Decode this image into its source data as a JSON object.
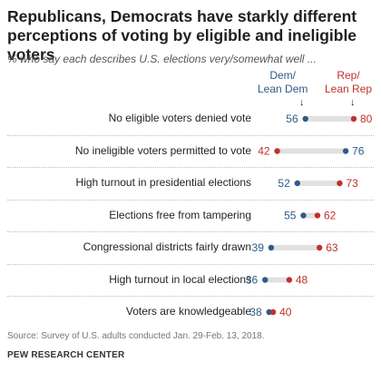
{
  "title": "Republicans, Democrats have starkly different perceptions of voting by eligible and ineligible voters",
  "subtitle": "% who say each describes U.S. elections very/somewhat well ...",
  "source": "Source: Survey of U.S. adults conducted Jan. 29-Feb. 13, 2018.",
  "org": "PEW RESEARCH CENTER",
  "colors": {
    "dem": "#2d5b88",
    "rep": "#c0312b",
    "connector": "#e1e1e1"
  },
  "chart_data": {
    "type": "dot",
    "title": "Republicans, Democrats have starkly different perceptions of voting by eligible and ineligible voters",
    "subtitle": "% who say each describes U.S. elections very/somewhat well ...",
    "categories": [
      "No eligible voters denied vote",
      "No ineligible voters permitted to vote",
      "High turnout in presidential elections",
      "Elections free from tampering",
      "Congressional districts fairly drawn",
      "High turnout in local elections",
      "Voters are knowledgeable"
    ],
    "series": [
      {
        "name": "Dem/ Lean Dem",
        "label_lines": [
          "Dem/",
          "Lean Dem"
        ],
        "values": [
          56,
          76,
          52,
          55,
          39,
          36,
          38
        ]
      },
      {
        "name": "Rep/ Lean Rep",
        "label_lines": [
          "Rep/",
          "Lean Rep"
        ],
        "values": [
          80,
          42,
          73,
          62,
          63,
          48,
          40
        ]
      }
    ],
    "xlim": [
      30,
      85
    ],
    "grid": false,
    "legend": "top-right"
  }
}
